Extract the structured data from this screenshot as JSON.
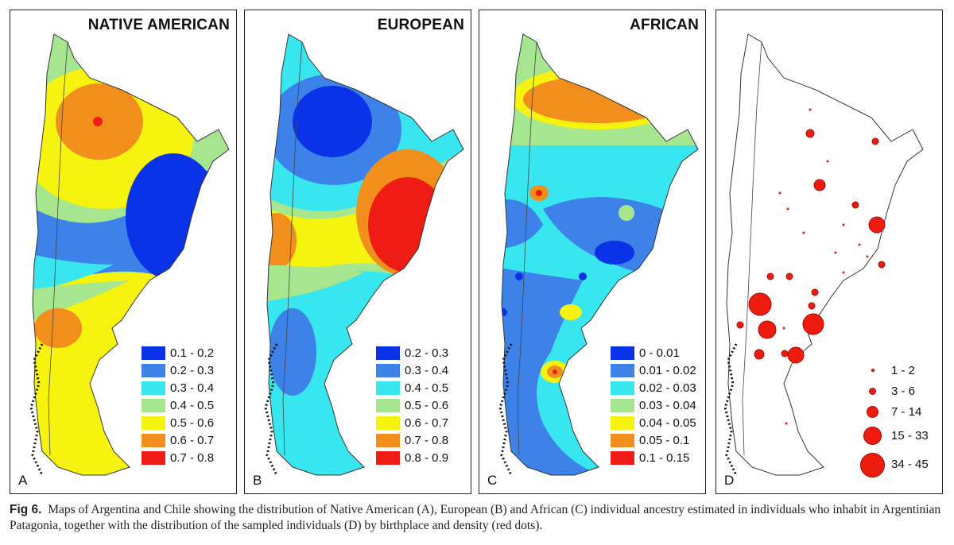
{
  "panels": [
    {
      "id": "a",
      "title": "NATIVE AMERICAN",
      "letter": "A",
      "legend": [
        {
          "label": "0.1 - 0.2",
          "color": "#0a32e6"
        },
        {
          "label": "0.2 - 0.3",
          "color": "#3c82e8"
        },
        {
          "label": "0.3 - 0.4",
          "color": "#37e6ee"
        },
        {
          "label": "0.4 - 0.5",
          "color": "#a6e68e"
        },
        {
          "label": "0.5 - 0.6",
          "color": "#f6f40e"
        },
        {
          "label": "0.6 - 0.7",
          "color": "#f28f1c"
        },
        {
          "label": "0.7 - 0.8",
          "color": "#ee1c14"
        }
      ]
    },
    {
      "id": "b",
      "title": "EUROPEAN",
      "letter": "B",
      "legend": [
        {
          "label": "0.2 - 0.3",
          "color": "#0a32e6"
        },
        {
          "label": "0.3 - 0.4",
          "color": "#3c82e8"
        },
        {
          "label": "0.4 - 0.5",
          "color": "#37e6ee"
        },
        {
          "label": "0.5 - 0.6",
          "color": "#a6e68e"
        },
        {
          "label": "0.6 - 0.7",
          "color": "#f6f40e"
        },
        {
          "label": "0.7 - 0.8",
          "color": "#f28f1c"
        },
        {
          "label": "0.8 - 0.9",
          "color": "#ee1c14"
        }
      ]
    },
    {
      "id": "c",
      "title": "AFRICAN",
      "letter": "C",
      "legend": [
        {
          "label": "0 - 0.01",
          "color": "#0a32e6"
        },
        {
          "label": "0.01 - 0.02",
          "color": "#3c82e8"
        },
        {
          "label": "0.02 - 0.03",
          "color": "#37e6ee"
        },
        {
          "label": "0.03 - 0.04",
          "color": "#a6e68e"
        },
        {
          "label": "0.04 - 0.05",
          "color": "#f6f40e"
        },
        {
          "label": "0.05 - 0.1",
          "color": "#f28f1c"
        },
        {
          "label": "0.1 - 0.15",
          "color": "#ee1c14"
        }
      ]
    }
  ],
  "panel_d": {
    "letter": "D",
    "legend": [
      {
        "label": "1 - 2"
      },
      {
        "label": "3 - 6"
      },
      {
        "label": "7 - 14"
      },
      {
        "label": "15 - 33"
      },
      {
        "label": "34 - 45"
      }
    ],
    "dot_color": "#ee1c0e"
  },
  "caption": {
    "label": "Fig 6.",
    "text": "Maps of Argentina and Chile showing the distribution of Native American (A), European (B) and African (C) individual ancestry estimated in individuals who inhabit in Argentinian Patagonia, together with the distribution of the sampled individuals (D) by birthplace and density (red dots)."
  }
}
